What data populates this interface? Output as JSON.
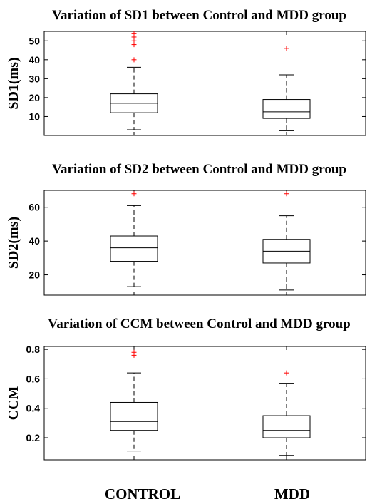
{
  "chart_data": [
    {
      "type": "box",
      "title": "Variation of SD1 between Control and MDD group",
      "ylabel": "SD1(ms)",
      "ylim": [
        0,
        55
      ],
      "yticks": [
        10,
        20,
        30,
        40,
        50
      ],
      "categories": [
        "CONTROL",
        "MDD"
      ],
      "boxes": [
        {
          "category": "CONTROL",
          "whisker_low": 3,
          "q1": 12,
          "median": 17,
          "q3": 22,
          "whisker_high": 36,
          "outliers": [
            54,
            52,
            50,
            48,
            40
          ]
        },
        {
          "category": "MDD",
          "whisker_low": 2.5,
          "q1": 9,
          "median": 12.5,
          "q3": 19,
          "whisker_high": 32,
          "outliers": [
            46
          ]
        }
      ]
    },
    {
      "type": "box",
      "title": "Variation of SD2 between Control and MDD group",
      "ylabel": "SD2(ms)",
      "ylim": [
        8,
        70
      ],
      "yticks": [
        20,
        40,
        60
      ],
      "categories": [
        "CONTROL",
        "MDD"
      ],
      "boxes": [
        {
          "category": "CONTROL",
          "whisker_low": 13,
          "q1": 28,
          "median": 36,
          "q3": 43,
          "whisker_high": 61,
          "outliers": [
            68
          ]
        },
        {
          "category": "MDD",
          "whisker_low": 11,
          "q1": 27,
          "median": 34,
          "q3": 41,
          "whisker_high": 55,
          "outliers": [
            68
          ]
        }
      ]
    },
    {
      "type": "box",
      "title": "Variation of CCM between Control and MDD group",
      "ylabel": "CCM",
      "ylim": [
        0.05,
        0.82
      ],
      "yticks": [
        0.2,
        0.4,
        0.6,
        0.8
      ],
      "yticklabels": [
        "0.2",
        "0.4",
        "0.6",
        "0.8"
      ],
      "categories": [
        "CONTROL",
        "MDD"
      ],
      "boxes": [
        {
          "category": "CONTROL",
          "whisker_low": 0.11,
          "q1": 0.25,
          "median": 0.31,
          "q3": 0.44,
          "whisker_high": 0.64,
          "outliers": [
            0.78,
            0.76
          ]
        },
        {
          "category": "MDD",
          "whisker_low": 0.08,
          "q1": 0.2,
          "median": 0.25,
          "q3": 0.35,
          "whisker_high": 0.57,
          "outliers": [
            0.64
          ]
        }
      ]
    }
  ],
  "xlabels": [
    "CONTROL",
    "MDD"
  ],
  "colors": {
    "box": "#000000",
    "outlier": "#ff0000",
    "background": "#ffffff"
  }
}
